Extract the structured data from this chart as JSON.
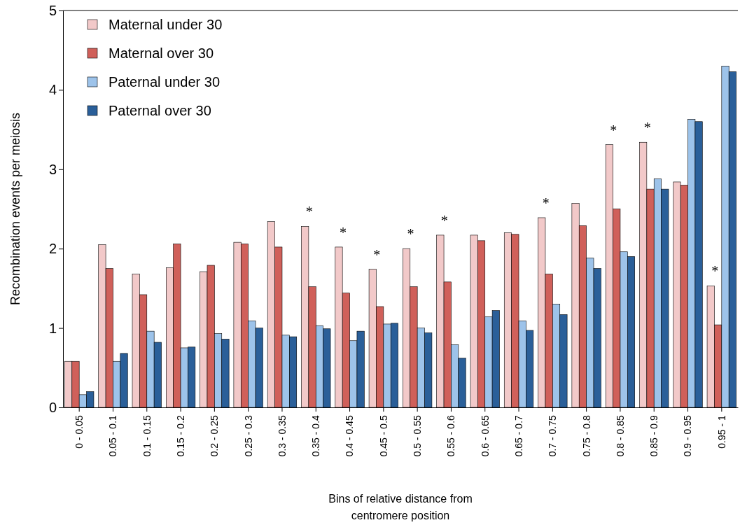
{
  "chart_data": {
    "type": "bar",
    "xlabel": "Bins of relative distance from centromere position",
    "ylabel": "Recombination events per meiosis",
    "categories": [
      "0 - 0.05",
      "0.05 - 0.1",
      "0.1 - 0.15",
      "0.15 - 0.2",
      "0.2 - 0.25",
      "0.25 - 0.3",
      "0.3 - 0.35",
      "0.35 - 0.4",
      "0.4 - 0.45",
      "0.45 - 0.5",
      "0.5 - 0.55",
      "0.55 - 0.6",
      "0.6 - 0.65",
      "0.65 - 0.7",
      "0.7 - 0.75",
      "0.75 - 0.8",
      "0.8 - 0.85",
      "0.85 - 0.9",
      "0.9 - 0.95",
      "0.95 - 1"
    ],
    "series": [
      {
        "name": "Maternal under 30",
        "color": "#f2c9c9",
        "values": [
          0.58,
          2.05,
          1.68,
          1.76,
          1.71,
          2.08,
          2.34,
          2.28,
          2.02,
          1.74,
          2.0,
          2.17,
          2.17,
          2.2,
          2.39,
          2.57,
          3.31,
          3.34,
          2.84,
          1.53
        ],
        "value_labels": [
          null,
          null,
          null,
          null,
          null,
          null,
          null,
          "*",
          "*",
          "*",
          "*",
          "*",
          null,
          null,
          "*",
          null,
          "*",
          "*",
          null,
          "*"
        ]
      },
      {
        "name": "Maternal over 30",
        "color": "#d0605a",
        "values": [
          0.58,
          1.75,
          1.42,
          2.06,
          1.79,
          2.06,
          2.02,
          1.52,
          1.44,
          1.27,
          1.52,
          1.58,
          2.1,
          2.18,
          1.68,
          2.29,
          2.5,
          2.75,
          2.8,
          1.04
        ]
      },
      {
        "name": "Paternal under 30",
        "color": "#9dc3ea",
        "values": [
          0.16,
          0.58,
          0.96,
          0.75,
          0.93,
          1.09,
          0.91,
          1.03,
          0.84,
          1.05,
          1.0,
          0.79,
          1.14,
          1.09,
          1.3,
          1.88,
          1.96,
          2.88,
          3.63,
          4.3
        ]
      },
      {
        "name": "Paternal over 30",
        "color": "#2a5f99",
        "values": [
          0.2,
          0.68,
          0.82,
          0.76,
          0.86,
          1.0,
          0.89,
          0.99,
          0.96,
          1.06,
          0.94,
          0.62,
          1.22,
          0.97,
          1.17,
          1.75,
          1.9,
          2.75,
          3.6,
          4.23
        ]
      }
    ],
    "ylim": [
      0,
      5
    ],
    "yticks": [
      0,
      1,
      2,
      3,
      4,
      5
    ],
    "legend": "top left"
  }
}
